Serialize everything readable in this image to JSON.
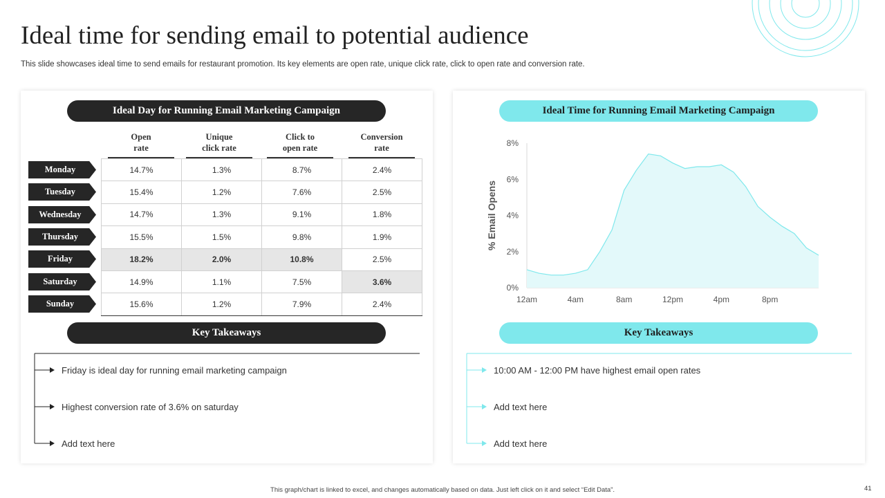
{
  "header": {
    "title": "Ideal time for sending email to potential audience",
    "subtitle": "This slide showcases ideal time to send emails for restaurant promotion. Its key elements are open rate, unique click rate, click to open rate and conversion rate."
  },
  "left_panel": {
    "heading": "Ideal Day for Running  Email Marketing Campaign",
    "columns": [
      "Open\nrate",
      "Unique\nclick rate",
      "Click to\nopen  rate",
      "Conversion\nrate"
    ],
    "days": [
      "Monday",
      "Tuesday",
      "Wednesday",
      "Thursday",
      "Friday",
      "Saturday",
      "Sunday"
    ],
    "rows": [
      [
        "14.7%",
        "1.3%",
        "8.7%",
        "2.4%"
      ],
      [
        "15.4%",
        "1.2%",
        "7.6%",
        "2.5%"
      ],
      [
        "14.7%",
        "1.3%",
        "9.1%",
        "1.8%"
      ],
      [
        "15.5%",
        "1.5%",
        "9.8%",
        "1.9%"
      ],
      [
        "18.2%",
        "2.0%",
        "10.8%",
        "2.5%"
      ],
      [
        "14.9%",
        "1.1%",
        "7.5%",
        "3.6%"
      ],
      [
        "15.6%",
        "1.2%",
        "7.9%",
        "2.4%"
      ]
    ],
    "takeaways_heading": "Key Takeaways",
    "takeaways": [
      "Friday is ideal day for running email marketing campaign",
      "Highest conversion rate of 3.6% on saturday",
      "Add text here"
    ]
  },
  "right_panel": {
    "heading": "Ideal Time for Running  Email Marketing Campaign",
    "takeaways_heading": "Key Takeaways",
    "takeaways": [
      "10:00 AM - 12:00 PM have highest email open rates",
      "Add text here",
      "Add text here"
    ]
  },
  "chart_data": {
    "type": "area",
    "title": "Ideal Time for Running  Email Marketing Campaign",
    "xlabel": "",
    "ylabel": "% Email Opens",
    "x_tick_labels": [
      "12am",
      "4am",
      "8am",
      "12pm",
      "4pm",
      "8pm"
    ],
    "x_tick_hours": [
      0,
      4,
      8,
      12,
      16,
      20
    ],
    "y_tick_labels": [
      "0%",
      "2%",
      "4%",
      "6%",
      "8%"
    ],
    "ylim": [
      0,
      8
    ],
    "xlim": [
      0,
      24
    ],
    "series": [
      {
        "name": "% Email Opens",
        "x": [
          0,
          1,
          2,
          3,
          4,
          5,
          6,
          7,
          8,
          9,
          10,
          11,
          12,
          13,
          14,
          15,
          16,
          17,
          18,
          19,
          20,
          21,
          22,
          23,
          24
        ],
        "values": [
          1.0,
          0.8,
          0.7,
          0.7,
          0.8,
          1.0,
          2.0,
          3.2,
          5.4,
          6.5,
          7.4,
          7.3,
          6.9,
          6.6,
          6.7,
          6.7,
          6.8,
          6.4,
          5.6,
          4.5,
          3.9,
          3.4,
          3.0,
          2.2,
          1.8
        ]
      }
    ],
    "color": "#7fe8ec",
    "fill": "#e3f9fa"
  },
  "footer": {
    "note": "This graph/chart is linked to excel, and changes automatically based on data. Just left click on it and select “Edit Data”.",
    "page_number": "41"
  },
  "colors": {
    "dark": "#262626",
    "cyan": "#7fe8ec",
    "highlight": "#e6e6e6"
  }
}
